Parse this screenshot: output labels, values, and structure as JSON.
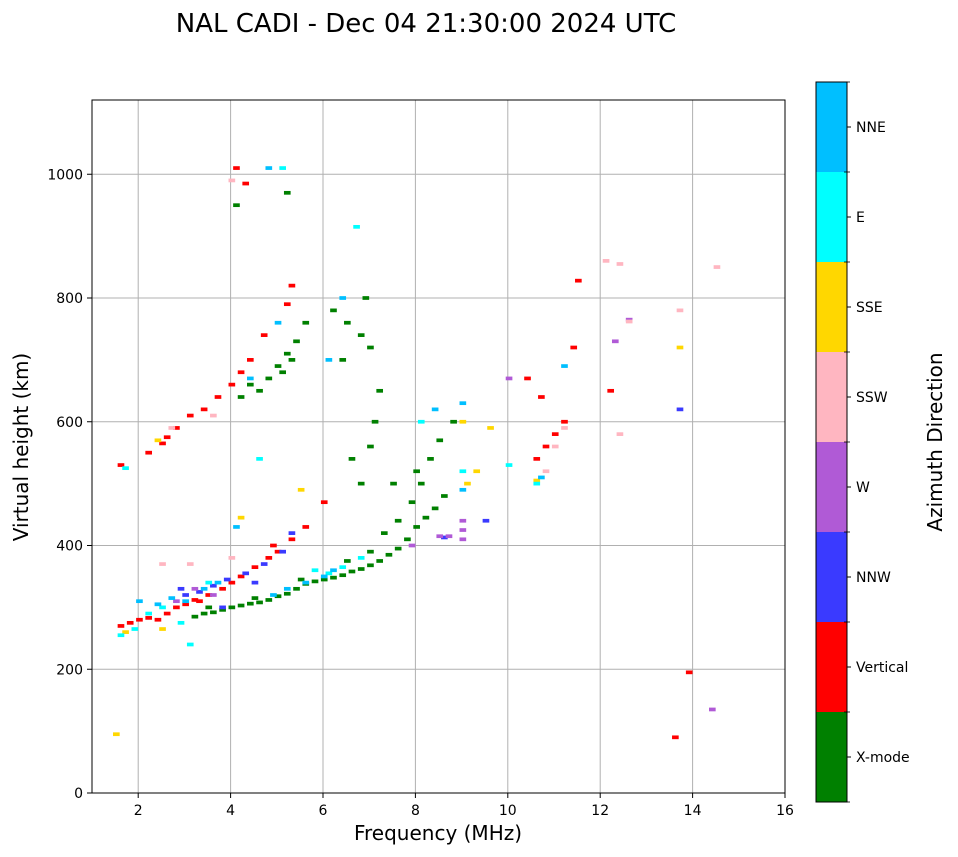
{
  "chart_data": {
    "type": "scatter",
    "title": "NAL CADI - Dec 04 21:30:00 2024 UTC",
    "xlabel": "Frequency (MHz)",
    "ylabel": "Virtual height (km)",
    "xlim": [
      1,
      16
    ],
    "ylim": [
      0,
      1120
    ],
    "xticks": [
      2,
      4,
      6,
      8,
      10,
      12,
      14,
      16
    ],
    "yticks": [
      0,
      200,
      400,
      600,
      800,
      1000
    ],
    "grid": true,
    "colorbar": {
      "label": "Azimuth Direction",
      "categories": [
        "X-mode",
        "Vertical",
        "NNW",
        "W",
        "SSW",
        "SSE",
        "E",
        "NNE"
      ],
      "colors": [
        "#008000",
        "#ff0000",
        "#3a3aff",
        "#b05ad6",
        "#ffb6c1",
        "#ffd700",
        "#00ffff",
        "#00bfff"
      ]
    },
    "series": [
      {
        "name": "X-mode",
        "points": [
          [
            3.2,
            285
          ],
          [
            3.4,
            290
          ],
          [
            3.6,
            292
          ],
          [
            3.8,
            296
          ],
          [
            4.0,
            300
          ],
          [
            4.2,
            303
          ],
          [
            4.4,
            306
          ],
          [
            4.6,
            308
          ],
          [
            4.8,
            312
          ],
          [
            5.0,
            318
          ],
          [
            5.2,
            322
          ],
          [
            5.4,
            330
          ],
          [
            5.6,
            338
          ],
          [
            5.8,
            342
          ],
          [
            6.0,
            345
          ],
          [
            6.2,
            348
          ],
          [
            6.4,
            352
          ],
          [
            6.6,
            358
          ],
          [
            6.8,
            362
          ],
          [
            7.0,
            368
          ],
          [
            7.2,
            375
          ],
          [
            7.4,
            385
          ],
          [
            7.6,
            395
          ],
          [
            7.8,
            410
          ],
          [
            8.0,
            430
          ],
          [
            8.2,
            445
          ],
          [
            8.4,
            460
          ],
          [
            8.6,
            480
          ],
          [
            3.5,
            300
          ],
          [
            4.5,
            315
          ],
          [
            5.5,
            345
          ],
          [
            6.5,
            375
          ],
          [
            7.0,
            390
          ],
          [
            7.3,
            420
          ],
          [
            7.6,
            440
          ],
          [
            7.9,
            470
          ],
          [
            8.1,
            500
          ],
          [
            8.3,
            540
          ],
          [
            8.5,
            570
          ],
          [
            8.8,
            600
          ],
          [
            4.2,
            640
          ],
          [
            4.4,
            660
          ],
          [
            4.6,
            650
          ],
          [
            4.8,
            670
          ],
          [
            5.0,
            690
          ],
          [
            5.2,
            710
          ],
          [
            5.4,
            730
          ],
          [
            5.6,
            760
          ],
          [
            6.2,
            780
          ],
          [
            6.5,
            760
          ],
          [
            6.8,
            740
          ],
          [
            7.0,
            720
          ],
          [
            7.2,
            650
          ],
          [
            7.0,
            560
          ],
          [
            7.1,
            600
          ],
          [
            6.4,
            700
          ],
          [
            6.6,
            540
          ],
          [
            6.8,
            500
          ],
          [
            5.1,
            680
          ],
          [
            5.3,
            700
          ],
          [
            4.1,
            950
          ],
          [
            5.2,
            970
          ],
          [
            6.9,
            800
          ],
          [
            7.5,
            500
          ],
          [
            8.0,
            520
          ]
        ]
      },
      {
        "name": "Vertical",
        "points": [
          [
            1.6,
            270
          ],
          [
            1.8,
            275
          ],
          [
            2.0,
            280
          ],
          [
            2.2,
            283
          ],
          [
            2.4,
            280
          ],
          [
            2.6,
            290
          ],
          [
            2.8,
            300
          ],
          [
            3.0,
            305
          ],
          [
            3.2,
            312
          ],
          [
            3.5,
            320
          ],
          [
            3.8,
            330
          ],
          [
            4.0,
            340
          ],
          [
            4.2,
            350
          ],
          [
            4.5,
            365
          ],
          [
            4.8,
            380
          ],
          [
            5.0,
            390
          ],
          [
            5.3,
            410
          ],
          [
            5.6,
            430
          ],
          [
            6.0,
            470
          ],
          [
            2.2,
            550
          ],
          [
            2.5,
            565
          ],
          [
            2.8,
            590
          ],
          [
            3.1,
            610
          ],
          [
            3.4,
            620
          ],
          [
            3.7,
            640
          ],
          [
            4.0,
            660
          ],
          [
            4.2,
            680
          ],
          [
            4.4,
            700
          ],
          [
            4.7,
            740
          ],
          [
            5.2,
            790
          ],
          [
            5.3,
            820
          ],
          [
            4.1,
            1010
          ],
          [
            4.3,
            985
          ],
          [
            10.6,
            540
          ],
          [
            10.8,
            560
          ],
          [
            11.0,
            580
          ],
          [
            11.2,
            600
          ],
          [
            11.4,
            720
          ],
          [
            12.2,
            650
          ],
          [
            10.4,
            670
          ],
          [
            11.5,
            828
          ],
          [
            13.6,
            90
          ],
          [
            13.9,
            195
          ],
          [
            1.6,
            530
          ],
          [
            2.6,
            575
          ],
          [
            3.3,
            310
          ],
          [
            4.9,
            400
          ],
          [
            10.7,
            640
          ]
        ]
      },
      {
        "name": "NNW",
        "points": [
          [
            3.0,
            320
          ],
          [
            3.3,
            325
          ],
          [
            3.6,
            335
          ],
          [
            3.9,
            345
          ],
          [
            4.3,
            355
          ],
          [
            4.7,
            370
          ],
          [
            5.1,
            390
          ],
          [
            2.9,
            330
          ],
          [
            3.8,
            300
          ],
          [
            4.5,
            340
          ],
          [
            9.5,
            440
          ],
          [
            13.7,
            620
          ],
          [
            8.6,
            413
          ],
          [
            5.3,
            420
          ]
        ]
      },
      {
        "name": "W",
        "points": [
          [
            2.8,
            310
          ],
          [
            3.2,
            330
          ],
          [
            3.6,
            320
          ],
          [
            8.5,
            415
          ],
          [
            8.7,
            415
          ],
          [
            9.0,
            440
          ],
          [
            9.0,
            425
          ],
          [
            9.0,
            410
          ],
          [
            12.3,
            730
          ],
          [
            12.6,
            765
          ],
          [
            14.4,
            135
          ],
          [
            7.9,
            400
          ],
          [
            10.0,
            670
          ]
        ]
      },
      {
        "name": "SSW",
        "points": [
          [
            2.5,
            370
          ],
          [
            3.1,
            370
          ],
          [
            2.7,
            590
          ],
          [
            3.6,
            610
          ],
          [
            12.1,
            860
          ],
          [
            12.4,
            855
          ],
          [
            12.6,
            762
          ],
          [
            13.7,
            780
          ],
          [
            14.5,
            850
          ],
          [
            4.0,
            990
          ],
          [
            4.0,
            380
          ],
          [
            10.8,
            520
          ],
          [
            11.0,
            560
          ],
          [
            12.4,
            580
          ],
          [
            11.2,
            590
          ]
        ]
      },
      {
        "name": "SSE",
        "points": [
          [
            1.5,
            95
          ],
          [
            1.7,
            260
          ],
          [
            2.5,
            265
          ],
          [
            2.4,
            570
          ],
          [
            4.2,
            445
          ],
          [
            9.1,
            500
          ],
          [
            9.3,
            520
          ],
          [
            9.6,
            590
          ],
          [
            13.7,
            720
          ],
          [
            5.5,
            490
          ],
          [
            9.0,
            600
          ],
          [
            10.6,
            505
          ]
        ]
      },
      {
        "name": "E",
        "points": [
          [
            1.6,
            255
          ],
          [
            1.9,
            265
          ],
          [
            2.2,
            290
          ],
          [
            2.5,
            300
          ],
          [
            2.9,
            275
          ],
          [
            3.1,
            240
          ],
          [
            3.5,
            340
          ],
          [
            5.8,
            360
          ],
          [
            6.1,
            355
          ],
          [
            6.4,
            365
          ],
          [
            6.8,
            380
          ],
          [
            8.1,
            600
          ],
          [
            9.0,
            520
          ],
          [
            10.0,
            530
          ],
          [
            1.7,
            525
          ],
          [
            4.6,
            540
          ],
          [
            6.7,
            915
          ],
          [
            10.6,
            500
          ],
          [
            5.1,
            1010
          ]
        ]
      },
      {
        "name": "NNE",
        "points": [
          [
            2.0,
            310
          ],
          [
            2.4,
            305
          ],
          [
            2.7,
            315
          ],
          [
            3.0,
            310
          ],
          [
            3.4,
            330
          ],
          [
            3.7,
            340
          ],
          [
            4.1,
            430
          ],
          [
            4.9,
            320
          ],
          [
            5.2,
            330
          ],
          [
            5.6,
            340
          ],
          [
            6.0,
            350
          ],
          [
            6.2,
            360
          ],
          [
            6.4,
            800
          ],
          [
            6.1,
            700
          ],
          [
            8.4,
            620
          ],
          [
            9.0,
            630
          ],
          [
            9.0,
            490
          ],
          [
            10.7,
            510
          ],
          [
            11.2,
            690
          ],
          [
            4.8,
            1010
          ],
          [
            4.4,
            670
          ],
          [
            5.0,
            760
          ]
        ]
      }
    ]
  }
}
